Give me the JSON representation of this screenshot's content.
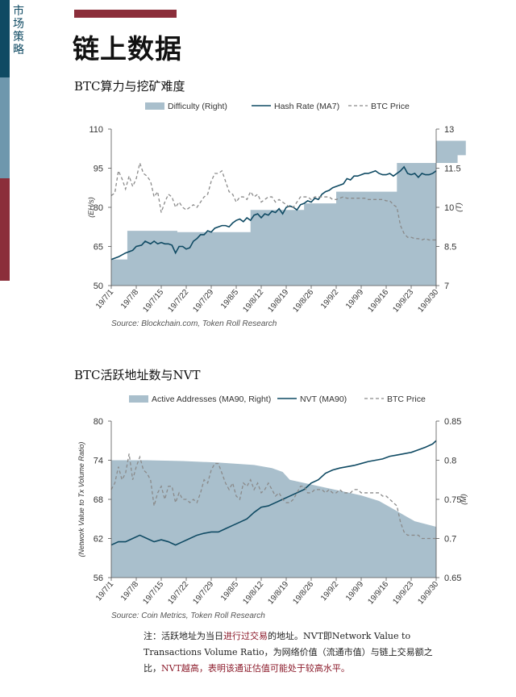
{
  "sidebar": {
    "section_tag": "市场策略"
  },
  "page_title": "链上数据",
  "note": {
    "p1": "注：活跃地址为当日",
    "p2": "进行过交易",
    "p3": "的地址。NVT即Network Value to Transactions Volume Ratio，为网络价值（流通市值）与链上交易额之比，",
    "p4": "NVT越高，表明该通证估值可能处于较高水平。"
  },
  "chart_data": [
    {
      "type": "line",
      "title": "BTC算力与挖矿难度",
      "source": "Source: Blockchain.com, Token Roll Research",
      "categories": [
        "19/7/1",
        "19/7/8",
        "19/7/15",
        "19/7/22",
        "19/7/29",
        "19/8/5",
        "19/8/12",
        "19/8/19",
        "19/8/26",
        "19/9/2",
        "19/9/9",
        "19/9/16",
        "19/9/23",
        "19/9/30"
      ],
      "legend": [
        "Difficulty (Right)",
        "Hash Rate (MA7)",
        "BTC Price"
      ],
      "ylabel_left": "(EH/s)",
      "ylabel_right": "(T)",
      "ylim_left": [
        50,
        110
      ],
      "yticks_left": [
        "110",
        "95",
        "80",
        "65",
        "50"
      ],
      "ylim_right": [
        7,
        13
      ],
      "yticks_right": [
        "13",
        "11.5",
        "10",
        "8.5",
        "7"
      ],
      "series": [
        {
          "name": "Difficulty (Right)",
          "axis": "right",
          "kind": "step-area",
          "x": [
            0,
            4.5,
            18.5,
            39,
            54,
            63,
            80,
            97,
            99.3
          ],
          "values": [
            8.0,
            9.1,
            9.05,
            9.9,
            10.15,
            10.6,
            11.7,
            12.0,
            12.55
          ]
        },
        {
          "name": "Hash Rate (MA7)",
          "axis": "left",
          "kind": "line",
          "x": [
            0,
            2,
            4,
            6,
            7,
            8.5,
            9.5,
            11,
            12,
            13,
            14,
            15,
            16,
            17,
            18,
            19,
            20,
            21,
            22,
            23,
            24,
            25,
            26,
            27,
            28,
            29,
            30,
            31,
            32,
            33,
            34,
            35,
            36,
            37,
            38,
            39,
            40,
            41,
            42,
            43,
            44,
            45,
            46,
            47,
            48,
            49,
            50,
            51,
            52,
            53,
            54,
            55,
            56,
            57,
            58,
            59,
            60,
            61,
            62,
            63,
            64,
            65,
            66,
            67,
            68,
            69,
            70,
            71,
            72,
            73,
            74,
            75,
            76,
            77,
            78,
            79,
            80,
            81,
            82,
            83,
            84,
            85,
            86,
            87,
            88,
            89,
            90,
            91
          ],
          "values": [
            60,
            61,
            62.5,
            63.5,
            65,
            65.5,
            67,
            66,
            67,
            66,
            66.5,
            66,
            66,
            65.5,
            62.5,
            65,
            65,
            64,
            64.5,
            67,
            68,
            69.5,
            69.5,
            71,
            70.5,
            72,
            72.5,
            73,
            73,
            72.5,
            74,
            75,
            75.5,
            74.5,
            76,
            75,
            77,
            77.5,
            76,
            77.5,
            77,
            78.5,
            78,
            79.5,
            77.5,
            80,
            80.5,
            80,
            79,
            81,
            81.5,
            82.5,
            82,
            83.5,
            83,
            85,
            86,
            86.5,
            87.5,
            88,
            88.5,
            89,
            91,
            90.5,
            92,
            92,
            92.5,
            93,
            93,
            93.5,
            94,
            93,
            92.5,
            92.5,
            93,
            92,
            93,
            94,
            95.5,
            93,
            92.5,
            93,
            91.5,
            93,
            92.5,
            92.5,
            93,
            94
          ]
        },
        {
          "name": "BTC Price",
          "axis": "left",
          "kind": "dashed",
          "x": [
            0,
            1,
            2,
            3,
            4,
            5,
            6,
            7,
            8,
            9,
            10,
            11,
            12,
            13,
            14,
            15,
            16,
            17,
            18,
            19,
            20,
            21,
            22,
            23,
            24,
            25,
            26,
            27,
            28,
            29,
            30,
            31,
            32,
            33,
            34,
            35,
            36,
            37,
            38,
            39,
            40,
            41,
            42,
            43,
            44,
            45,
            46,
            47,
            48,
            49,
            50,
            51,
            52,
            53,
            54,
            55,
            56,
            57,
            58,
            59,
            60,
            61,
            62,
            63,
            64,
            65,
            66,
            67,
            68,
            69,
            70,
            71,
            72,
            73,
            74,
            75,
            76,
            77,
            78,
            79,
            80,
            81,
            82,
            83,
            84,
            85,
            86,
            87,
            88,
            89,
            90,
            91
          ],
          "values": [
            84.5,
            85.5,
            94,
            91,
            87,
            92,
            88,
            91,
            97,
            93,
            92,
            90,
            84,
            86,
            78,
            82,
            85,
            84,
            80,
            82,
            80,
            79,
            80,
            81,
            80,
            82,
            84,
            85,
            90,
            93,
            93,
            94,
            90,
            86,
            85,
            82,
            84,
            84,
            83,
            86,
            84,
            85,
            82,
            83,
            84,
            84,
            82,
            83,
            82,
            81,
            80,
            80,
            82,
            84,
            84,
            84,
            83,
            84,
            84,
            84,
            84,
            84,
            83,
            83,
            83.5,
            84,
            83.5,
            83.5,
            83.5,
            83.5,
            83.5,
            83.5,
            83,
            83,
            83,
            83,
            83,
            82.5,
            82.5,
            81,
            80,
            73,
            70,
            68.5,
            68.5,
            68,
            68,
            67.5,
            68,
            67.5,
            67.5,
            67.5
          ]
        }
      ]
    },
    {
      "type": "line",
      "title": "BTC活跃地址数与NVT",
      "source": "Source: Coin Metrics, Token Roll Research",
      "categories": [
        "19/7/1",
        "19/7/8",
        "19/7/15",
        "19/7/22",
        "19/7/29",
        "19/8/5",
        "19/8/12",
        "19/8/19",
        "19/8/26",
        "19/9/2",
        "19/9/9",
        "19/9/16",
        "19/9/23",
        "19/9/30"
      ],
      "legend": [
        "Active Addresses (MA90, Right)",
        "NVT (MA90)",
        "BTC Price"
      ],
      "ylabel_left": "(Network Value to Tx Volume Ratio)",
      "ylabel_right": "(M)",
      "ylim_left": [
        56,
        80
      ],
      "yticks_left": [
        "80",
        "74",
        "68",
        "62",
        "56"
      ],
      "ylim_right": [
        0.65,
        0.85
      ],
      "yticks_right": [
        "0.85",
        "0.8",
        "0.75",
        "0.7",
        "0.65"
      ],
      "series": [
        {
          "name": "Active Addresses (MA90, Right)",
          "axis": "right",
          "kind": "area",
          "x": [
            0,
            10,
            20,
            30,
            40,
            45,
            48,
            50,
            55,
            60,
            65,
            70,
            75,
            80,
            85,
            91
          ],
          "values": [
            0.8,
            0.8,
            0.799,
            0.797,
            0.794,
            0.79,
            0.785,
            0.775,
            0.77,
            0.765,
            0.76,
            0.755,
            0.748,
            0.735,
            0.722,
            0.715
          ]
        },
        {
          "name": "NVT (MA90)",
          "axis": "left",
          "kind": "line",
          "x": [
            0,
            2,
            4,
            6,
            8,
            10,
            12,
            14,
            16,
            18,
            20,
            22,
            24,
            26,
            28,
            30,
            32,
            34,
            36,
            38,
            40,
            42,
            44,
            46,
            48,
            50,
            52,
            54,
            56,
            58,
            60,
            62,
            64,
            66,
            68,
            70,
            72,
            74,
            76,
            78,
            80,
            82,
            84,
            86,
            88,
            90,
            91
          ],
          "values": [
            61,
            61.5,
            61.5,
            62,
            62.5,
            62,
            61.5,
            61.8,
            61.5,
            61,
            61.5,
            62,
            62.5,
            62.8,
            63,
            63,
            63.5,
            64,
            64.5,
            65,
            66,
            66.8,
            67,
            67.5,
            68,
            68.5,
            69,
            69.5,
            70.5,
            71,
            72,
            72.5,
            72.8,
            73,
            73.2,
            73.5,
            73.8,
            74,
            74.2,
            74.6,
            74.8,
            75,
            75.2,
            75.6,
            76,
            76.5,
            77
          ]
        },
        {
          "name": "BTC Price",
          "axis": "left",
          "kind": "dashed",
          "x": [
            0,
            1,
            2,
            3,
            4,
            5,
            6,
            7,
            8,
            9,
            10,
            11,
            12,
            13,
            14,
            15,
            16,
            17,
            18,
            19,
            20,
            21,
            22,
            23,
            24,
            25,
            26,
            27,
            28,
            29,
            30,
            31,
            32,
            33,
            34,
            35,
            36,
            37,
            38,
            39,
            40,
            41,
            42,
            43,
            44,
            45,
            46,
            47,
            48,
            49,
            50,
            51,
            52,
            53,
            54,
            55,
            56,
            57,
            58,
            59,
            60,
            61,
            62,
            63,
            64,
            65,
            66,
            67,
            68,
            69,
            70,
            71,
            72,
            73,
            74,
            75,
            76,
            77,
            78,
            79,
            80,
            81,
            82,
            83,
            84,
            85,
            86,
            87,
            88,
            89,
            90,
            91
          ],
          "values": [
            69.5,
            70.5,
            73,
            71,
            72,
            75,
            71,
            73,
            74.5,
            72.5,
            72,
            71,
            67,
            69,
            70,
            68,
            70,
            70,
            67.5,
            69,
            68,
            68,
            67.5,
            68,
            67.5,
            69,
            71,
            70.5,
            72.5,
            73.5,
            73.5,
            72,
            70.5,
            69.5,
            70.5,
            68.5,
            68,
            70.5,
            70,
            71,
            69.5,
            70.5,
            69,
            69.5,
            70.5,
            69.5,
            68.5,
            69,
            68,
            67.5,
            67.5,
            68,
            69,
            70,
            70,
            69,
            69,
            69.5,
            69.5,
            69.5,
            69,
            69.5,
            69,
            69,
            69.5,
            69,
            69,
            69,
            69.5,
            69.5,
            69,
            69,
            69,
            69,
            69,
            69,
            68.5,
            68.5,
            68,
            67.5,
            67,
            64.5,
            63,
            62.5,
            62.5,
            62.5,
            62.5,
            62,
            62,
            62,
            62,
            62
          ]
        }
      ]
    }
  ]
}
